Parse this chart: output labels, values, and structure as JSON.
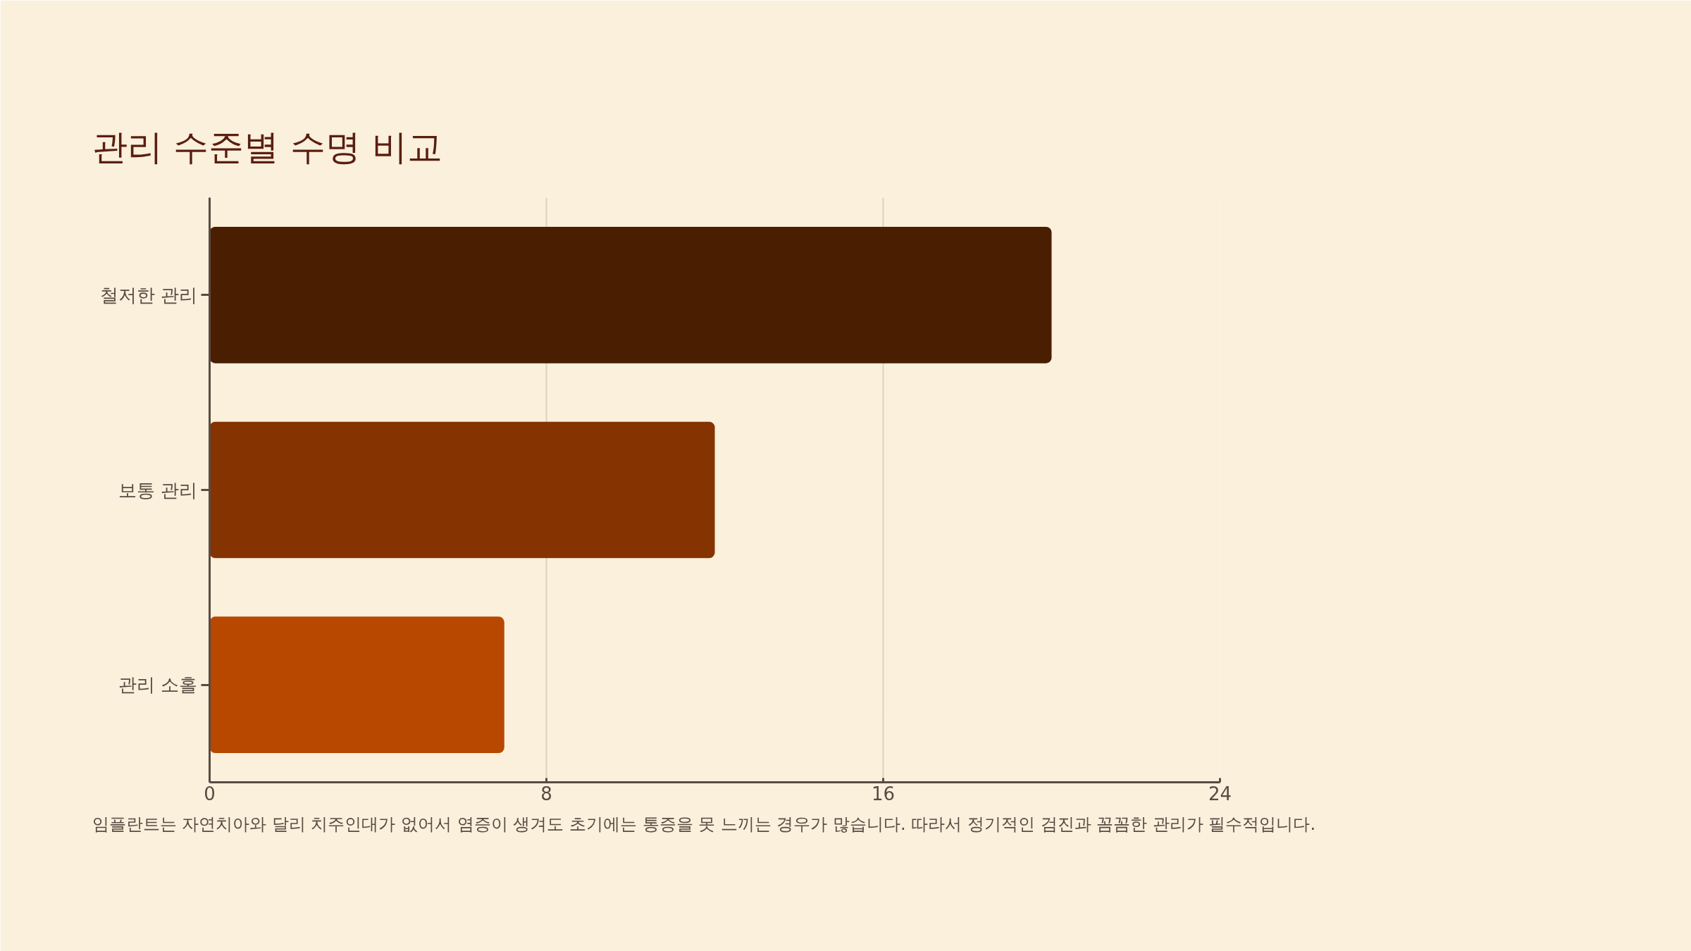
{
  "chart_data": {
    "type": "bar",
    "orientation": "horizontal",
    "title": "관리 수준별 수명 비교",
    "categories": [
      "철저한 관리",
      "보통 관리",
      "관리 소홀"
    ],
    "values": [
      20,
      12,
      7
    ],
    "colors": [
      "#4a1e00",
      "#853300",
      "#b84800"
    ],
    "xlim": [
      0,
      24
    ],
    "xticks": [
      0,
      8,
      16,
      24
    ],
    "grid": "x",
    "annotations": [
      "임플란트는 자연치아와 달리 치주인대가 없어서 염증이 생겨도 초기에는 통증을 못 느끼는 경우가 많습니다. 따라서 정기적인 검진과 꼼꼼한 관리가 필수적입니다."
    ]
  }
}
